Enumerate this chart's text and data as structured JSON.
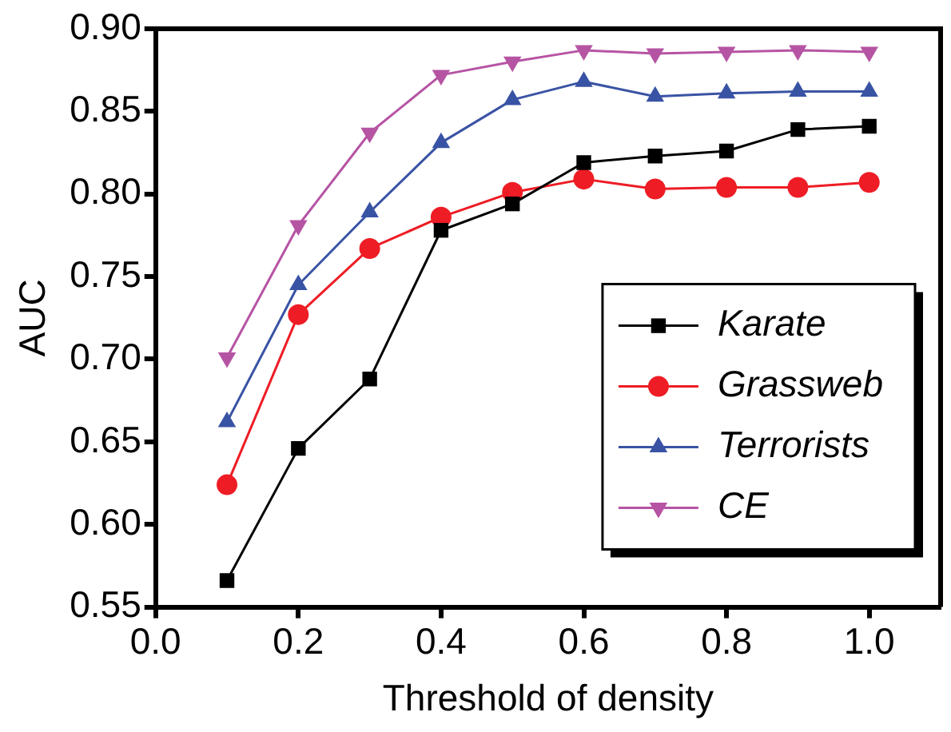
{
  "chart_data": {
    "type": "line",
    "xlabel": "Threshold of density",
    "ylabel": "AUC",
    "x": [
      0.1,
      0.2,
      0.3,
      0.4,
      0.5,
      0.6,
      0.7,
      0.8,
      0.9,
      1.0
    ],
    "xlim": [
      0,
      1.1
    ],
    "xticks": [
      {
        "value": 0,
        "label": "0.0"
      },
      {
        "value": 0.2,
        "label": "0.2"
      },
      {
        "value": 0.4,
        "label": "0.4"
      },
      {
        "value": 0.6,
        "label": "0.6"
      },
      {
        "value": 0.8,
        "label": "0.8"
      },
      {
        "value": 1.0,
        "label": "1.0"
      }
    ],
    "ylim": [
      0.55,
      0.9
    ],
    "yticks": [
      {
        "value": 0.55,
        "label": "0.55"
      },
      {
        "value": 0.6,
        "label": "0.60"
      },
      {
        "value": 0.65,
        "label": "0.65"
      },
      {
        "value": 0.7,
        "label": "0.70"
      },
      {
        "value": 0.75,
        "label": "0.75"
      },
      {
        "value": 0.8,
        "label": "0.80"
      },
      {
        "value": 0.85,
        "label": "0.85"
      },
      {
        "value": 0.9,
        "label": "0.90"
      }
    ],
    "grid": false,
    "legend": "bottom right",
    "line_style": "solid",
    "series": [
      {
        "name": "Karate",
        "color": "#000000",
        "marker": "square",
        "values": [
          0.566,
          0.646,
          0.688,
          0.778,
          0.794,
          0.819,
          0.823,
          0.826,
          0.839,
          0.841
        ]
      },
      {
        "name": "Grassweb",
        "color": "#ee1c25",
        "marker": "circle",
        "values": [
          0.624,
          0.727,
          0.767,
          0.786,
          0.801,
          0.809,
          0.803,
          0.804,
          0.804,
          0.807
        ]
      },
      {
        "name": "Terrorists",
        "color": "#3953a4",
        "marker": "triangle",
        "values": [
          0.662,
          0.745,
          0.789,
          0.831,
          0.857,
          0.868,
          0.859,
          0.861,
          0.862,
          0.862
        ]
      },
      {
        "name": "CE",
        "color": "#b654a4",
        "marker": "triangle_down",
        "values": [
          0.701,
          0.781,
          0.837,
          0.872,
          0.88,
          0.887,
          0.885,
          0.886,
          0.887,
          0.886
        ]
      }
    ]
  }
}
